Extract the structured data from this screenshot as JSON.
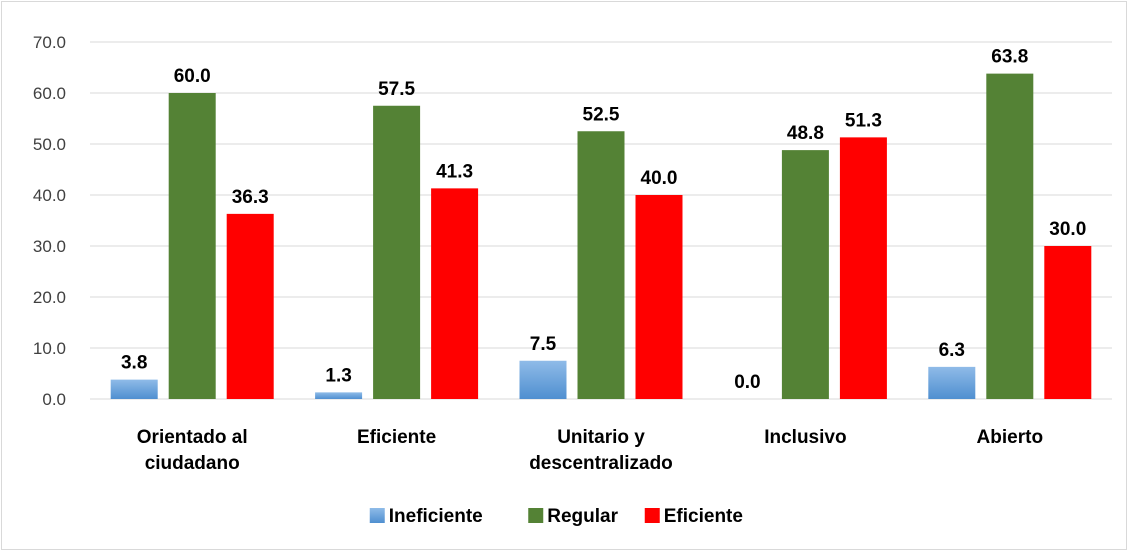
{
  "chart_data": {
    "type": "bar",
    "categories": [
      "Orientado al ciudadano",
      "Eficiente",
      "Unitario y descentralizado",
      "Inclusivo",
      "Abierto"
    ],
    "category_lines": [
      [
        "Orientado al",
        "ciudadano"
      ],
      [
        "Eficiente"
      ],
      [
        "Unitario y",
        "descentralizado"
      ],
      [
        "Inclusivo"
      ],
      [
        "Abierto"
      ]
    ],
    "series": [
      {
        "name": "Ineficiente",
        "color": "#5b9bd5",
        "values": [
          3.8,
          1.3,
          7.5,
          0.0,
          6.3
        ],
        "labels": [
          "3.8",
          "1.3",
          "7.5",
          "0.0",
          "6.3"
        ]
      },
      {
        "name": "Regular",
        "color": "#548235",
        "values": [
          60.0,
          57.5,
          52.5,
          48.8,
          63.8
        ],
        "labels": [
          "60.0",
          "57.5",
          "52.5",
          "48.8",
          "63.8"
        ]
      },
      {
        "name": "Eficiente",
        "color": "#ff0000",
        "values": [
          36.3,
          41.3,
          40.0,
          51.3,
          30.0
        ],
        "labels": [
          "36.3",
          "41.3",
          "40.0",
          "51.3",
          "30.0"
        ]
      }
    ],
    "ylim": [
      0,
      70
    ],
    "yticks": [
      "0.0",
      "10.0",
      "20.0",
      "30.0",
      "40.0",
      "50.0",
      "60.0",
      "70.0"
    ],
    "grid": true,
    "legend_position": "bottom",
    "title": "",
    "xlabel": "",
    "ylabel": ""
  }
}
